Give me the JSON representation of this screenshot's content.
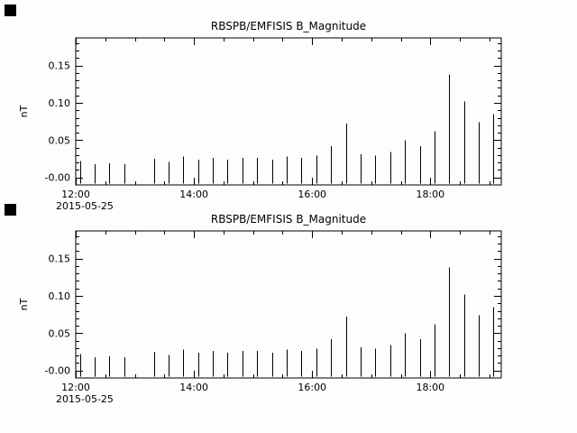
{
  "window": {
    "background": "#fdfdfd",
    "line_color": "#000000"
  },
  "chart_data": [
    {
      "type": "bar",
      "title": "RBSPB/EMFISIS  B_Magnitude",
      "ylabel": "nT",
      "x_date_label": "2015-05-25",
      "xlim": [
        12.0,
        19.2
      ],
      "ylim": [
        -0.01,
        0.187
      ],
      "grid": false,
      "legend": "none",
      "xticks": [
        {
          "hour": 12.0,
          "label": "12:00"
        },
        {
          "hour": 14.0,
          "label": "14:00"
        },
        {
          "hour": 16.0,
          "label": "16:00"
        },
        {
          "hour": 18.0,
          "label": "18:00"
        }
      ],
      "yticks": [
        {
          "value": 0.0,
          "label": "-0.00"
        },
        {
          "value": 0.05,
          "label": "0.05"
        },
        {
          "value": 0.1,
          "label": "0.10"
        },
        {
          "value": 0.15,
          "label": "0.15"
        }
      ],
      "x_hours": [
        12.07,
        12.32,
        12.57,
        12.82,
        13.32,
        13.57,
        13.82,
        14.07,
        14.32,
        14.57,
        14.82,
        15.07,
        15.32,
        15.57,
        15.82,
        16.07,
        16.32,
        16.57,
        16.82,
        17.07,
        17.32,
        17.57,
        17.82,
        18.07,
        18.32,
        18.57,
        18.82,
        19.07
      ],
      "values": [
        0.022,
        0.018,
        0.019,
        0.018,
        0.025,
        0.021,
        0.028,
        0.024,
        0.026,
        0.024,
        0.026,
        0.026,
        0.024,
        0.028,
        0.026,
        0.029,
        0.042,
        0.072,
        0.031,
        0.029,
        0.034,
        0.05,
        0.042,
        0.062,
        0.138,
        0.102,
        0.074,
        0.085
      ],
      "spike_base": -0.008
    },
    {
      "type": "bar",
      "title": "RBSPB/EMFISIS  B_Magnitude",
      "ylabel": "nT",
      "x_date_label": "2015-05-25",
      "xlim": [
        12.0,
        19.2
      ],
      "ylim": [
        -0.01,
        0.187
      ],
      "grid": false,
      "legend": "none",
      "xticks": [
        {
          "hour": 12.0,
          "label": "12:00"
        },
        {
          "hour": 14.0,
          "label": "14:00"
        },
        {
          "hour": 16.0,
          "label": "16:00"
        },
        {
          "hour": 18.0,
          "label": "18:00"
        }
      ],
      "yticks": [
        {
          "value": 0.0,
          "label": "-0.00"
        },
        {
          "value": 0.05,
          "label": "0.05"
        },
        {
          "value": 0.1,
          "label": "0.10"
        },
        {
          "value": 0.15,
          "label": "0.15"
        }
      ],
      "x_hours": [
        12.07,
        12.32,
        12.57,
        12.82,
        13.32,
        13.57,
        13.82,
        14.07,
        14.32,
        14.57,
        14.82,
        15.07,
        15.32,
        15.57,
        15.82,
        16.07,
        16.32,
        16.57,
        16.82,
        17.07,
        17.32,
        17.57,
        17.82,
        18.07,
        18.32,
        18.57,
        18.82,
        19.07
      ],
      "values": [
        0.022,
        0.018,
        0.019,
        0.018,
        0.025,
        0.021,
        0.028,
        0.024,
        0.026,
        0.024,
        0.026,
        0.026,
        0.024,
        0.028,
        0.026,
        0.029,
        0.042,
        0.072,
        0.031,
        0.029,
        0.034,
        0.05,
        0.042,
        0.062,
        0.138,
        0.102,
        0.074,
        0.085
      ],
      "spike_base": -0.008
    }
  ]
}
